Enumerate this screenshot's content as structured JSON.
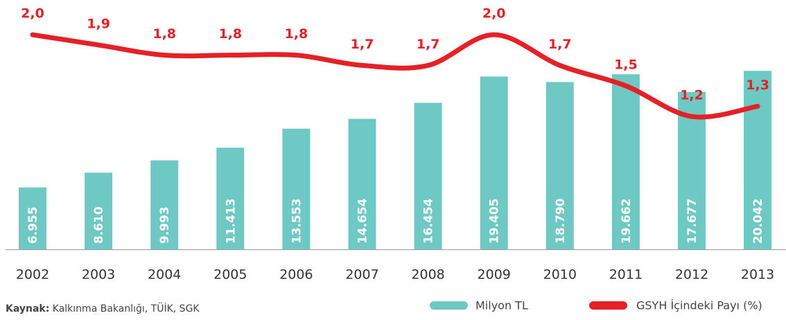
{
  "chart_data": {
    "type": "bar_line",
    "categories": [
      "2002",
      "2003",
      "2004",
      "2005",
      "2006",
      "2007",
      "2008",
      "2009",
      "2010",
      "2011",
      "2012",
      "2013"
    ],
    "series": [
      {
        "name": "Milyon TL",
        "color": "#6ec8c4",
        "values": [
          6955,
          8610,
          9993,
          11413,
          13553,
          14654,
          16454,
          19405,
          18790,
          19662,
          17677,
          20042
        ],
        "value_labels": [
          "6.955",
          "8.610",
          "9.993",
          "11.413",
          "13.553",
          "14.654",
          "16.454",
          "19.405",
          "18.790",
          "19.662",
          "17.677",
          "20.042"
        ]
      },
      {
        "name": "GSYH İçindeki Payı (%)",
        "color": "#e42127",
        "axis": "y2",
        "values": [
          2.0,
          1.9,
          1.8,
          1.8,
          1.8,
          1.7,
          1.7,
          2.0,
          1.7,
          1.5,
          1.2,
          1.3
        ],
        "value_labels": [
          "2,0",
          "1,9",
          "1,8",
          "1,8",
          "1,8",
          "1,7",
          "1,7",
          "2,0",
          "1,7",
          "1,5",
          "1,2",
          "1,3"
        ]
      }
    ],
    "ylim": [
      0,
      28000
    ],
    "y2lim": [
      -0.1,
      2.34
    ],
    "source_label": "Kaynak:",
    "source_text": "Kalkınma Bakanlığı, TÜİK, SGK"
  }
}
